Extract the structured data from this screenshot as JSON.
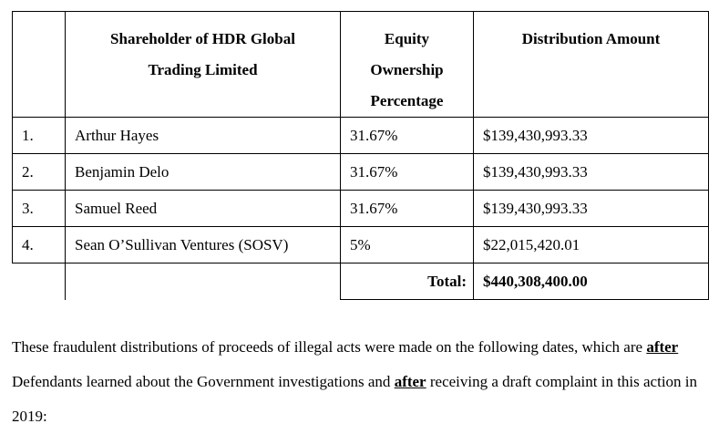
{
  "table": {
    "headers": {
      "index": "",
      "shareholder": "Shareholder of HDR Global Trading Limited",
      "equity": "Equity Ownership Percentage",
      "amount": "Distribution Amount"
    },
    "rows": [
      {
        "index": "1.",
        "name": "Arthur Hayes",
        "equity": "31.67%",
        "amount": "$139,430,993.33"
      },
      {
        "index": "2.",
        "name": "Benjamin Delo",
        "equity": "31.67%",
        "amount": "$139,430,993.33"
      },
      {
        "index": "3.",
        "name": "Samuel Reed",
        "equity": "31.67%",
        "amount": "$139,430,993.33"
      },
      {
        "index": "4.",
        "name": "Sean O’Sullivan Ventures (SOSV)",
        "equity": "5%",
        "amount": "$22,015,420.01"
      }
    ],
    "total_label": "Total:",
    "total_amount": "$440,308,400.00"
  },
  "paragraph": {
    "part1": "These fraudulent distributions of proceeds of illegal acts were made on the following dates, which are ",
    "emph1": "after",
    "part2": " Defendants learned about the Government investigations and ",
    "emph2": "after",
    "part3": " receiving a draft complaint in this action in 2019:"
  }
}
